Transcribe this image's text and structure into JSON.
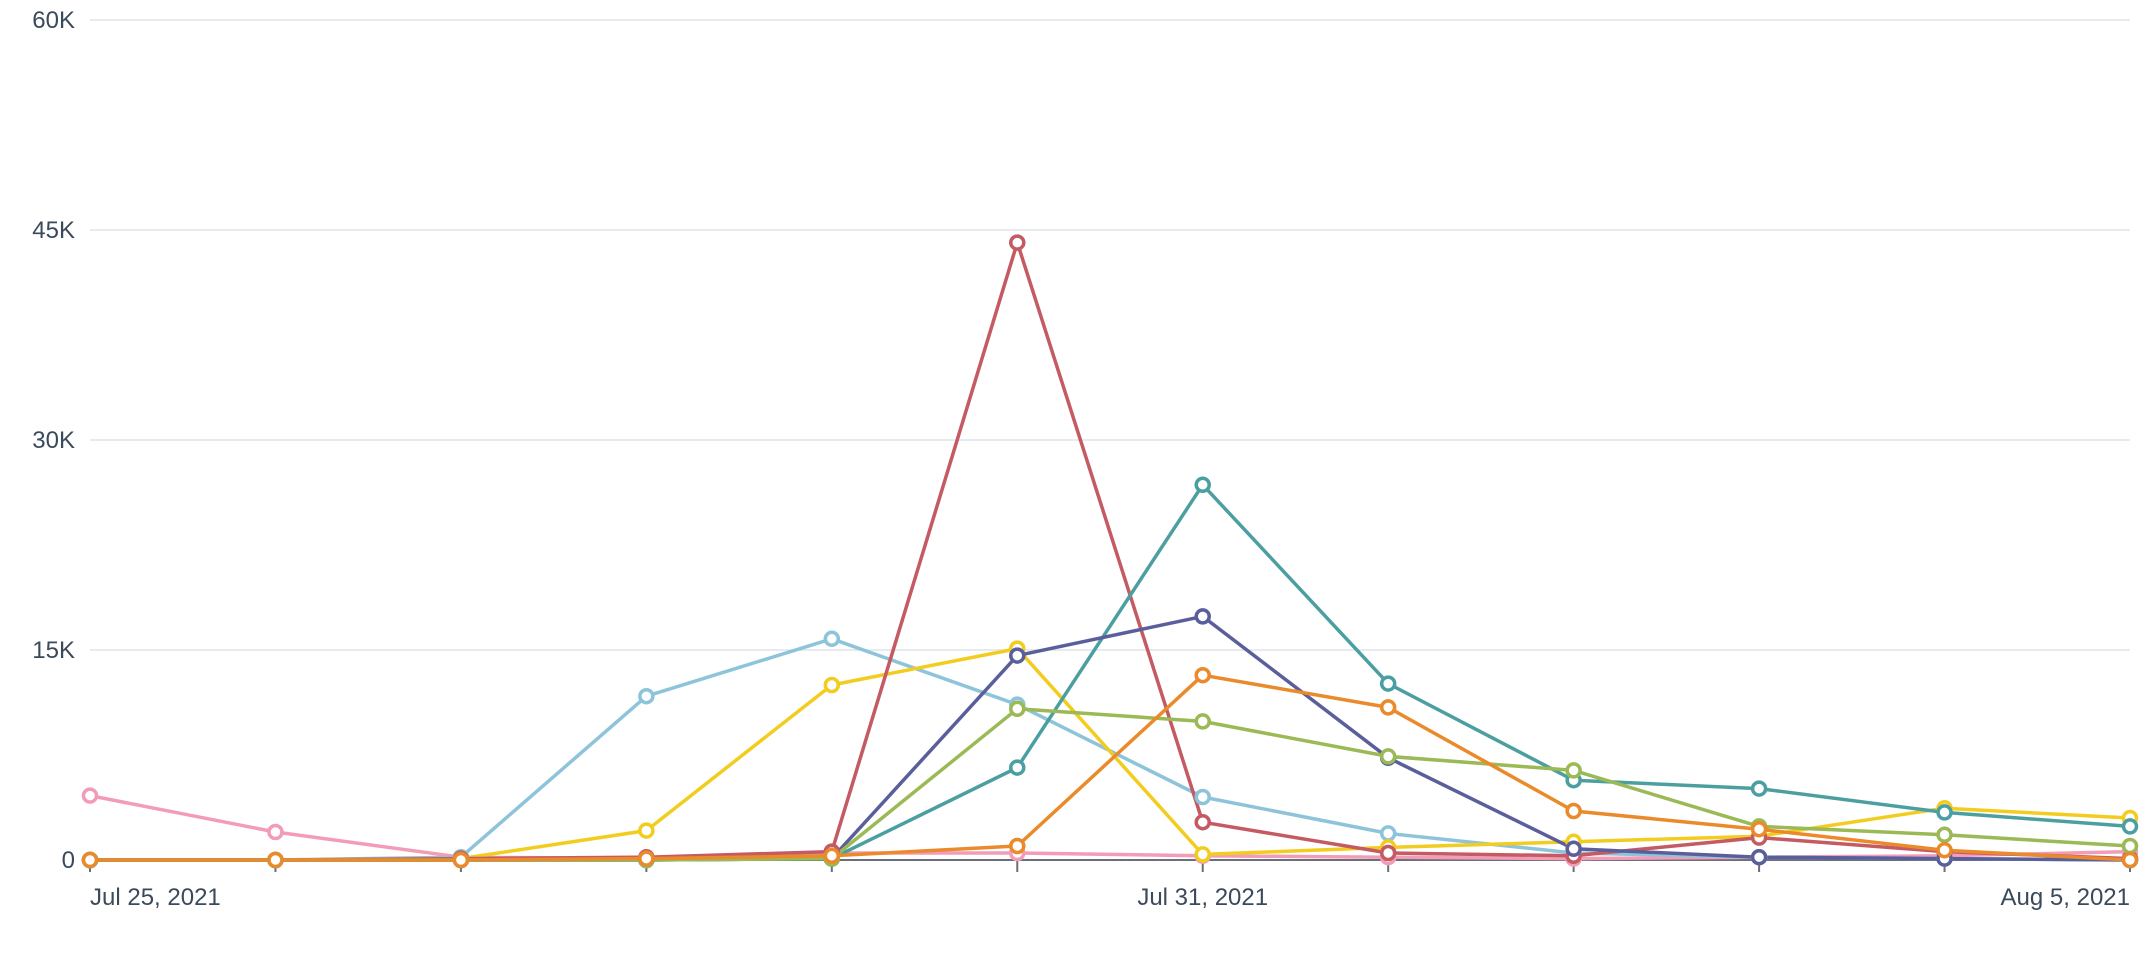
{
  "chart_data": {
    "type": "line",
    "title": "",
    "xlabel": "",
    "ylabel": "",
    "x": [
      "2021-07-25",
      "2021-07-26",
      "2021-07-27",
      "2021-07-28",
      "2021-07-29",
      "2021-07-30",
      "2021-07-31",
      "2021-08-01",
      "2021-08-02",
      "2021-08-03",
      "2021-08-04",
      "2021-08-05"
    ],
    "x_tick_labels": [
      {
        "x": "2021-07-25",
        "label": "Jul 25, 2021"
      },
      {
        "x": "2021-07-31",
        "label": "Jul 31, 2021"
      },
      {
        "x": "2021-08-05",
        "label": "Aug 5, 2021"
      }
    ],
    "ylim": [
      0,
      60000
    ],
    "y_ticks": [
      {
        "value": 0,
        "label": "0"
      },
      {
        "value": 15000,
        "label": "15K"
      },
      {
        "value": 30000,
        "label": "30K"
      },
      {
        "value": 45000,
        "label": "45K"
      },
      {
        "value": 60000,
        "label": "60K"
      }
    ],
    "grid": true,
    "legend": "none",
    "series": [
      {
        "color": "#f29cb8",
        "values": [
          4600,
          2000,
          200,
          100,
          500,
          500,
          300,
          200,
          100,
          200,
          300,
          600
        ]
      },
      {
        "color": "#8ec4da",
        "values": [
          0,
          0,
          200,
          11700,
          15800,
          11100,
          4500,
          1900,
          500,
          200,
          100,
          0
        ]
      },
      {
        "color": "#f2cd1f",
        "values": [
          0,
          0,
          100,
          2100,
          12500,
          15100,
          400,
          900,
          1300,
          1700,
          3700,
          3000
        ]
      },
      {
        "color": "#c45a62",
        "values": [
          0,
          0,
          100,
          200,
          600,
          44100,
          2700,
          500,
          300,
          1600,
          600,
          100
        ]
      },
      {
        "color": "#4c9fa1",
        "values": [
          0,
          0,
          0,
          0,
          100,
          6600,
          26800,
          12600,
          5700,
          5100,
          3400,
          2400
        ]
      },
      {
        "color": "#5a5f9c",
        "values": [
          0,
          0,
          0,
          0,
          100,
          14600,
          17400,
          7300,
          800,
          200,
          100,
          0
        ]
      },
      {
        "color": "#9bb955",
        "values": [
          0,
          0,
          0,
          0,
          100,
          10800,
          9900,
          7400,
          6400,
          2400,
          1800,
          1000
        ]
      },
      {
        "color": "#ea8a2a",
        "values": [
          0,
          0,
          0,
          100,
          300,
          1000,
          13200,
          10900,
          3500,
          2200,
          700,
          0
        ]
      }
    ]
  }
}
